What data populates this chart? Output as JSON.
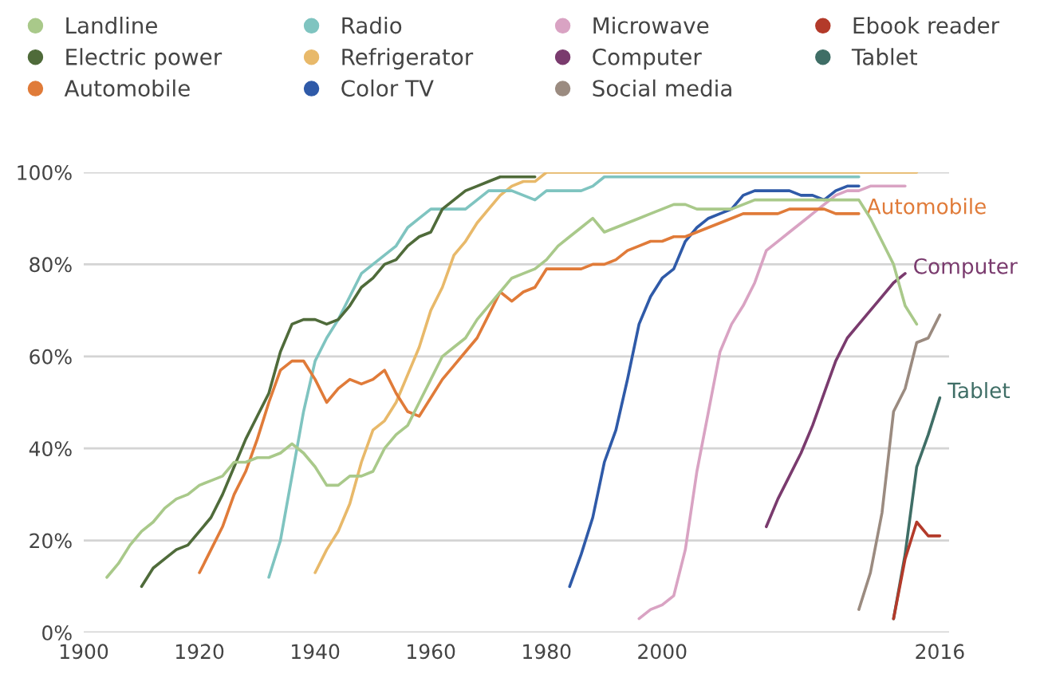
{
  "chart_data": {
    "type": "line",
    "categories": [
      "1900",
      null,
      null,
      null,
      null,
      null,
      null,
      null,
      null,
      null,
      "1920",
      null,
      null,
      null,
      null,
      null,
      null,
      null,
      null,
      null,
      "1940",
      null,
      null,
      null,
      null,
      null,
      null,
      null,
      null,
      null,
      "1960",
      null,
      null,
      null,
      null,
      null,
      null,
      null,
      null,
      null,
      "1980",
      null,
      null,
      null,
      null,
      null,
      null,
      null,
      null,
      null,
      "2000",
      null,
      null,
      null,
      null,
      null,
      null,
      null,
      null,
      null,
      null,
      null,
      null,
      null,
      null,
      null,
      null,
      null,
      null,
      null,
      null,
      null,
      null,
      null,
      "2016"
    ],
    "series": [
      {
        "name": "Landline",
        "color": "#a9c98a",
        "values": [
          null,
          null,
          12,
          15,
          19,
          22,
          24,
          27,
          29,
          30,
          32,
          33,
          34,
          37,
          37,
          38,
          38,
          39,
          41,
          39,
          36,
          32,
          32,
          34,
          34,
          35,
          40,
          43,
          45,
          50,
          55,
          60,
          62,
          64,
          68,
          71,
          74,
          77,
          78,
          79,
          81,
          84,
          86,
          88,
          90,
          87,
          88,
          89,
          90,
          91,
          92,
          93,
          93,
          92,
          92,
          92,
          92,
          93,
          94,
          94,
          94,
          94,
          94,
          94,
          94,
          94,
          94,
          94,
          90,
          85,
          80,
          71,
          67,
          null,
          null
        ]
      },
      {
        "name": "Electric power",
        "color": "#4f6b3a",
        "values": [
          null,
          null,
          null,
          null,
          null,
          10,
          14,
          16,
          18,
          19,
          22,
          25,
          30,
          36,
          42,
          47,
          52,
          61,
          67,
          68,
          68,
          67,
          68,
          71,
          75,
          77,
          80,
          81,
          84,
          86,
          87,
          92,
          94,
          96,
          97,
          98,
          99,
          99,
          99,
          99,
          null,
          null,
          null,
          null,
          null,
          null,
          null,
          null,
          null,
          null,
          null,
          null,
          null,
          null,
          null,
          null,
          null,
          null,
          null,
          null,
          null,
          null,
          null,
          null,
          null,
          null,
          null,
          null,
          null,
          null,
          null,
          null,
          null,
          null,
          null
        ]
      },
      {
        "name": "Automobile",
        "color": "#e07b39",
        "values": [
          null,
          null,
          null,
          null,
          null,
          null,
          null,
          null,
          null,
          null,
          13,
          18,
          23,
          30,
          35,
          42,
          50,
          57,
          59,
          59,
          55,
          50,
          53,
          55,
          54,
          55,
          57,
          52,
          48,
          47,
          51,
          55,
          58,
          61,
          64,
          69,
          74,
          72,
          74,
          75,
          79,
          79,
          79,
          79,
          80,
          80,
          81,
          83,
          84,
          85,
          85,
          86,
          86,
          87,
          88,
          89,
          90,
          91,
          91,
          91,
          91,
          92,
          92,
          92,
          92,
          91,
          91,
          91,
          null,
          null,
          null,
          null,
          null,
          null,
          null
        ]
      },
      {
        "name": "Radio",
        "color": "#7fc4c0",
        "values": [
          null,
          null,
          null,
          null,
          null,
          null,
          null,
          null,
          null,
          null,
          null,
          null,
          null,
          null,
          null,
          null,
          12,
          20,
          34,
          48,
          59,
          64,
          68,
          73,
          78,
          80,
          82,
          84,
          88,
          90,
          92,
          92,
          92,
          92,
          94,
          96,
          96,
          96,
          95,
          94,
          96,
          96,
          96,
          96,
          97,
          99,
          99,
          99,
          99,
          99,
          99,
          99,
          99,
          99,
          99,
          99,
          99,
          99,
          99,
          99,
          99,
          99,
          99,
          99,
          99,
          99,
          99,
          99,
          null,
          null,
          null,
          null,
          null,
          null,
          null
        ]
      },
      {
        "name": "Refrigerator",
        "color": "#e8b96a",
        "values": [
          null,
          null,
          null,
          null,
          null,
          null,
          null,
          null,
          null,
          null,
          null,
          null,
          null,
          null,
          null,
          null,
          null,
          null,
          null,
          null,
          13,
          18,
          22,
          28,
          37,
          44,
          46,
          50,
          56,
          62,
          70,
          75,
          82,
          85,
          89,
          92,
          95,
          97,
          98,
          98,
          100,
          100,
          100,
          100,
          100,
          100,
          100,
          100,
          100,
          100,
          100,
          100,
          100,
          100,
          100,
          100,
          100,
          100,
          100,
          100,
          100,
          100,
          100,
          100,
          100,
          100,
          100,
          100,
          100,
          100,
          100,
          100,
          100,
          null,
          null
        ]
      },
      {
        "name": "Color TV",
        "color": "#2f5aa8",
        "values": [
          null,
          null,
          null,
          null,
          null,
          null,
          null,
          null,
          null,
          null,
          null,
          null,
          null,
          null,
          null,
          null,
          null,
          null,
          null,
          null,
          null,
          null,
          null,
          null,
          null,
          null,
          null,
          null,
          null,
          null,
          null,
          null,
          null,
          null,
          null,
          null,
          null,
          null,
          null,
          null,
          null,
          null,
          10,
          17,
          25,
          37,
          44,
          55,
          67,
          73,
          77,
          79,
          85,
          88,
          90,
          91,
          92,
          95,
          96,
          96,
          96,
          96,
          95,
          95,
          94,
          96,
          97,
          97,
          null,
          null,
          null,
          null,
          null,
          null,
          null
        ]
      },
      {
        "name": "Microwave",
        "color": "#d9a3c3",
        "values": [
          null,
          null,
          null,
          null,
          null,
          null,
          null,
          null,
          null,
          null,
          null,
          null,
          null,
          null,
          null,
          null,
          null,
          null,
          null,
          null,
          null,
          null,
          null,
          null,
          null,
          null,
          null,
          null,
          null,
          null,
          null,
          null,
          null,
          null,
          null,
          null,
          null,
          null,
          null,
          null,
          null,
          null,
          null,
          null,
          null,
          null,
          null,
          null,
          3,
          5,
          6,
          8,
          18,
          35,
          48,
          61,
          67,
          71,
          76,
          83,
          85,
          87,
          89,
          91,
          93,
          95,
          96,
          96,
          97,
          97,
          97,
          97,
          null,
          null,
          null
        ]
      },
      {
        "name": "Computer",
        "color": "#7a3b6e",
        "values": [
          null,
          null,
          null,
          null,
          null,
          null,
          null,
          null,
          null,
          null,
          null,
          null,
          null,
          null,
          null,
          null,
          null,
          null,
          null,
          null,
          null,
          null,
          null,
          null,
          null,
          null,
          null,
          null,
          null,
          null,
          null,
          null,
          null,
          null,
          null,
          null,
          null,
          null,
          null,
          null,
          null,
          null,
          null,
          null,
          null,
          null,
          null,
          null,
          null,
          null,
          null,
          null,
          null,
          null,
          null,
          null,
          null,
          null,
          null,
          23,
          29,
          34,
          39,
          45,
          52,
          59,
          64,
          67,
          70,
          73,
          76,
          78,
          null,
          null,
          null
        ]
      },
      {
        "name": "Social media",
        "color": "#9b8b80",
        "values": [
          null,
          null,
          null,
          null,
          null,
          null,
          null,
          null,
          null,
          null,
          null,
          null,
          null,
          null,
          null,
          null,
          null,
          null,
          null,
          null,
          null,
          null,
          null,
          null,
          null,
          null,
          null,
          null,
          null,
          null,
          null,
          null,
          null,
          null,
          null,
          null,
          null,
          null,
          null,
          null,
          null,
          null,
          null,
          null,
          null,
          null,
          null,
          null,
          null,
          null,
          null,
          null,
          null,
          null,
          null,
          null,
          null,
          null,
          null,
          null,
          null,
          null,
          null,
          null,
          null,
          null,
          null,
          5,
          13,
          26,
          48,
          53,
          63,
          64,
          69
        ]
      },
      {
        "name": "Ebook reader",
        "color": "#b33a2a",
        "values": [
          null,
          null,
          null,
          null,
          null,
          null,
          null,
          null,
          null,
          null,
          null,
          null,
          null,
          null,
          null,
          null,
          null,
          null,
          null,
          null,
          null,
          null,
          null,
          null,
          null,
          null,
          null,
          null,
          null,
          null,
          null,
          null,
          null,
          null,
          null,
          null,
          null,
          null,
          null,
          null,
          null,
          null,
          null,
          null,
          null,
          null,
          null,
          null,
          null,
          null,
          null,
          null,
          null,
          null,
          null,
          null,
          null,
          null,
          null,
          null,
          null,
          null,
          null,
          null,
          null,
          null,
          null,
          null,
          null,
          null,
          3,
          16,
          24,
          21,
          21
        ]
      },
      {
        "name": "Tablet",
        "color": "#3f6e66",
        "values": [
          null,
          null,
          null,
          null,
          null,
          null,
          null,
          null,
          null,
          null,
          null,
          null,
          null,
          null,
          null,
          null,
          null,
          null,
          null,
          null,
          null,
          null,
          null,
          null,
          null,
          null,
          null,
          null,
          null,
          null,
          null,
          null,
          null,
          null,
          null,
          null,
          null,
          null,
          null,
          null,
          null,
          null,
          null,
          null,
          null,
          null,
          null,
          null,
          null,
          null,
          null,
          null,
          null,
          null,
          null,
          null,
          null,
          null,
          null,
          null,
          null,
          null,
          null,
          null,
          null,
          null,
          null,
          null,
          null,
          null,
          3,
          17,
          36,
          43,
          51
        ]
      }
    ],
    "ylim": [
      0,
      100
    ],
    "yticks": [
      {
        "value": 0,
        "label": "0%"
      },
      {
        "value": 20,
        "label": "20%"
      },
      {
        "value": 40,
        "label": "40%"
      },
      {
        "value": 60,
        "label": "60%"
      },
      {
        "value": 80,
        "label": "80%"
      },
      {
        "value": 100,
        "label": "100%"
      }
    ],
    "grid": "y",
    "legend": "top",
    "annotations": [
      "Automobile",
      "Computer",
      "Tablet"
    ]
  }
}
